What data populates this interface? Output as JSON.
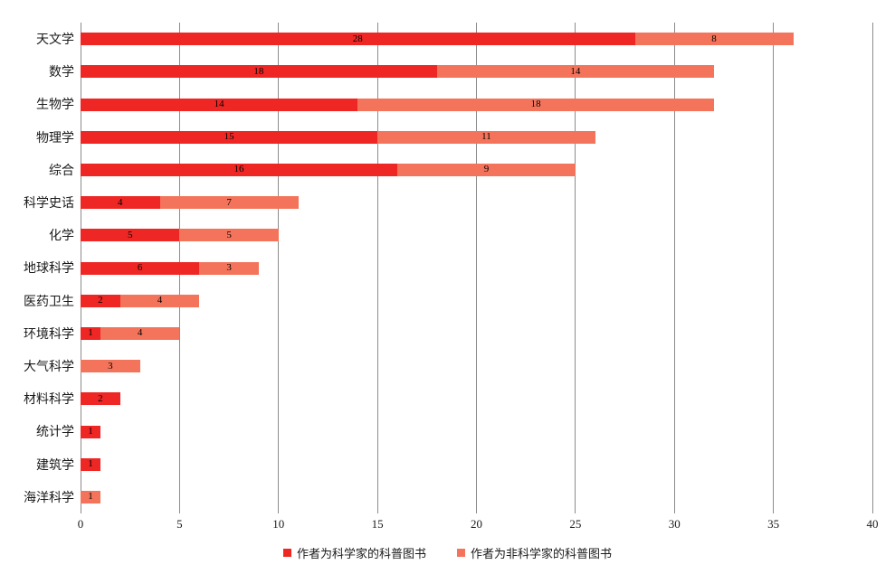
{
  "chart_data": {
    "type": "bar",
    "orientation": "horizontal",
    "stacked": true,
    "title": "",
    "xlabel": "",
    "ylabel": "",
    "categories": [
      "天文学",
      "数学",
      "生物学",
      "物理学",
      "综合",
      "科学史话",
      "化学",
      "地球科学",
      "医药卫生",
      "环境科学",
      "大气科学",
      "材料科学",
      "统计学",
      "建筑学",
      "海洋科学"
    ],
    "series": [
      {
        "name": "作者为科学家的科普图书",
        "color": "#EE2724",
        "values": [
          28,
          18,
          14,
          15,
          16,
          4,
          5,
          6,
          2,
          1,
          0,
          2,
          1,
          1,
          0
        ]
      },
      {
        "name": "作者为非科学家的科普图书",
        "color": "#F4745B",
        "values": [
          8,
          14,
          18,
          11,
          9,
          7,
          5,
          3,
          4,
          4,
          3,
          0,
          0,
          0,
          1
        ]
      }
    ],
    "xlim": [
      0,
      40
    ],
    "xticks": [
      0,
      5,
      10,
      15,
      20,
      25,
      30,
      35,
      40
    ],
    "grid": "vertical-only",
    "legend_position": "bottom-center",
    "data_labels": "inside-center",
    "totals": [
      36,
      32,
      32,
      26,
      25,
      11,
      10,
      9,
      6,
      5,
      3,
      2,
      1,
      1,
      1
    ]
  },
  "colors": {
    "grid": "#8C8C8C",
    "text": "#1A1A1A",
    "value_label": "#000000",
    "background": "#FFFFFF"
  }
}
